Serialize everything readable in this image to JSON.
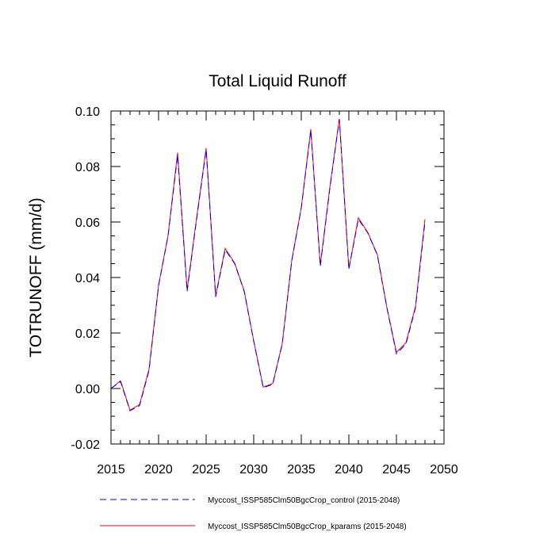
{
  "chart_data": {
    "type": "line",
    "title": "Total Liquid Runoff",
    "xlabel": "",
    "ylabel": "TOTRUNOFF  (mm/d)",
    "xlim": [
      2015,
      2050
    ],
    "ylim": [
      -0.02,
      0.1
    ],
    "x_ticks": [
      2015,
      2020,
      2025,
      2030,
      2035,
      2040,
      2045,
      2050
    ],
    "x_tick_labels": [
      "2015",
      "2020",
      "2025",
      "2030",
      "2035",
      "2040",
      "2045",
      "2050"
    ],
    "y_ticks": [
      -0.02,
      0.0,
      0.02,
      0.04,
      0.06,
      0.08,
      0.1
    ],
    "y_tick_labels": [
      "-0.02",
      "0.00",
      "0.02",
      "0.04",
      "0.06",
      "0.08",
      "0.10"
    ],
    "x": [
      2015,
      2016,
      2017,
      2018,
      2019,
      2020,
      2021,
      2022,
      2023,
      2024,
      2025,
      2026,
      2027,
      2028,
      2029,
      2030,
      2031,
      2032,
      2033,
      2034,
      2035,
      2036,
      2037,
      2038,
      2039,
      2040,
      2041,
      2042,
      2043,
      2044,
      2045,
      2046,
      2047,
      2048
    ],
    "series": [
      {
        "name": "Myccost_ISSP585Clm50BgcCrop_control (2015-2048)",
        "style": "dashed",
        "color": "#0000ff",
        "values": [
          0.0,
          0.0025,
          -0.008,
          -0.0062,
          0.0065,
          0.037,
          0.055,
          0.084,
          0.035,
          0.061,
          0.086,
          0.033,
          0.05,
          0.045,
          0.035,
          0.017,
          0.0003,
          0.0015,
          0.016,
          0.046,
          0.065,
          0.093,
          0.044,
          0.072,
          0.097,
          0.043,
          0.061,
          0.056,
          0.048,
          0.029,
          0.0125,
          0.016,
          0.029,
          0.06
        ]
      },
      {
        "name": "Myccost_ISSP585Clm50BgcCrop_kparams (2015-2048)",
        "style": "solid",
        "color": "#ff0000",
        "values": [
          0.0,
          0.0028,
          -0.0078,
          -0.0058,
          0.007,
          0.0372,
          0.0552,
          0.085,
          0.0355,
          0.0615,
          0.0866,
          0.0335,
          0.0505,
          0.0452,
          0.0352,
          0.0172,
          0.0005,
          0.0018,
          0.0162,
          0.0462,
          0.0652,
          0.0935,
          0.0445,
          0.0725,
          0.0972,
          0.0432,
          0.0615,
          0.0562,
          0.0482,
          0.0292,
          0.013,
          0.0165,
          0.0295,
          0.061
        ]
      }
    ]
  }
}
